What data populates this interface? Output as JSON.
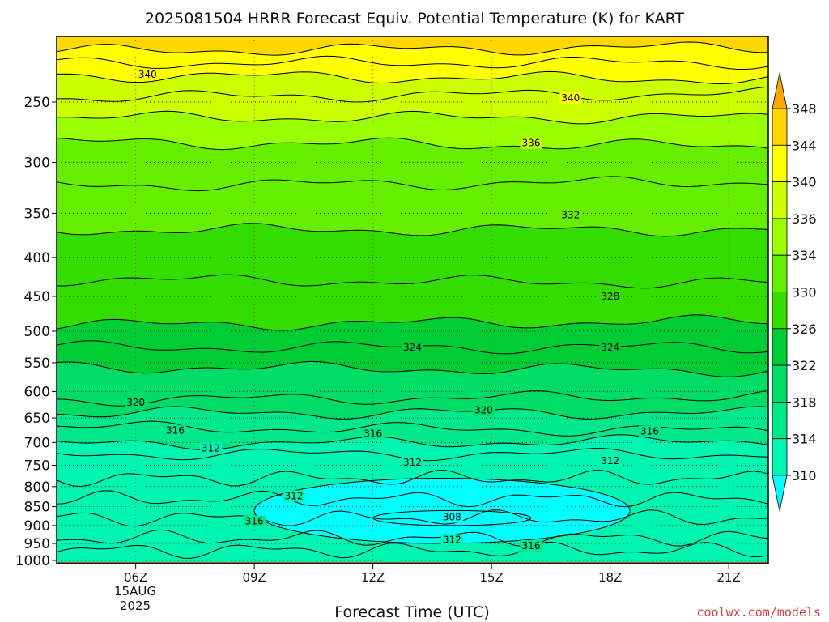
{
  "chart_data": {
    "type": "contour",
    "title": "2025081504 HRRR Forecast Equiv. Potential Temperature (K) for KART",
    "xlabel": "Forecast Time (UTC)",
    "ylabel": "",
    "y_scale": "log",
    "y_inverted": true,
    "ylim": [
      1010,
      205
    ],
    "xlim_hours": [
      4.0,
      22.0
    ],
    "x_ticks": [
      {
        "hour": 6,
        "label": "06Z"
      },
      {
        "hour": 9,
        "label": "09Z"
      },
      {
        "hour": 12,
        "label": "12Z"
      },
      {
        "hour": 15,
        "label": "15Z"
      },
      {
        "hour": 18,
        "label": "18Z"
      },
      {
        "hour": 21,
        "label": "21Z"
      }
    ],
    "date_label_lines": [
      "15AUG",
      "2025"
    ],
    "y_ticks": [
      250,
      300,
      350,
      400,
      450,
      500,
      550,
      600,
      650,
      700,
      750,
      800,
      850,
      900,
      950,
      1000
    ],
    "grid": "dotted",
    "surface_pressure": 1005,
    "surface_color": "#a0522d",
    "colorbar": {
      "levels": [
        310,
        314,
        318,
        322,
        326,
        330,
        334,
        336,
        340,
        344,
        348
      ],
      "colors": [
        "#00ffff",
        "#00f5b0",
        "#00e88a",
        "#00dc66",
        "#00cc33",
        "#33dd00",
        "#66ee00",
        "#99ff00",
        "#ccff00",
        "#ffff00",
        "#ffd700",
        "#ffa500"
      ],
      "extend": "both"
    },
    "contour_interval": 4,
    "contour_levels_aloft": [
      {
        "value": 344,
        "pressure": 213
      },
      {
        "value": 342,
        "pressure": 222
      },
      {
        "value": 340,
        "pressure": 232
      },
      {
        "value": 338,
        "pressure": 245
      },
      {
        "value": 336,
        "pressure": 262
      },
      {
        "value": 334,
        "pressure": 284
      },
      {
        "value": 332,
        "pressure": 320
      },
      {
        "value": 330,
        "pressure": 368
      },
      {
        "value": 328,
        "pressure": 430
      },
      {
        "value": 326,
        "pressure": 488
      },
      {
        "value": 324,
        "pressure": 525
      },
      {
        "value": 322,
        "pressure": 560
      },
      {
        "value": 320,
        "pressure": 612
      },
      {
        "value": 318,
        "pressure": 640
      },
      {
        "value": 316,
        "pressure": 672
      },
      {
        "value": 314,
        "pressure": 700
      },
      {
        "value": 312,
        "pressure": 725
      }
    ],
    "contour_labels": [
      {
        "text": "340",
        "hour": 6.3,
        "pressure": 230
      },
      {
        "text": "340",
        "hour": 17.0,
        "pressure": 247
      },
      {
        "text": "336",
        "hour": 16.0,
        "pressure": 283
      },
      {
        "text": "332",
        "hour": 17.0,
        "pressure": 352
      },
      {
        "text": "328",
        "hour": 18.0,
        "pressure": 450
      },
      {
        "text": "324",
        "hour": 13.0,
        "pressure": 525
      },
      {
        "text": "324",
        "hour": 18.0,
        "pressure": 525
      },
      {
        "text": "320",
        "hour": 6.0,
        "pressure": 620
      },
      {
        "text": "320",
        "hour": 14.8,
        "pressure": 635
      },
      {
        "text": "316",
        "hour": 7.0,
        "pressure": 675
      },
      {
        "text": "316",
        "hour": 12.0,
        "pressure": 682
      },
      {
        "text": "316",
        "hour": 19.0,
        "pressure": 677
      },
      {
        "text": "312",
        "hour": 7.9,
        "pressure": 712
      },
      {
        "text": "312",
        "hour": 13.0,
        "pressure": 744
      },
      {
        "text": "312",
        "hour": 18.0,
        "pressure": 740
      },
      {
        "text": "312",
        "hour": 10.0,
        "pressure": 823
      },
      {
        "text": "316",
        "hour": 9.0,
        "pressure": 888
      },
      {
        "text": "308",
        "hour": 14.0,
        "pressure": 877
      },
      {
        "text": "312",
        "hour": 14.0,
        "pressure": 940
      },
      {
        "text": "316",
        "hour": 16.0,
        "pressure": 957
      }
    ],
    "low_level_regions": [
      {
        "value": 308,
        "hour_range": [
          12.0,
          16.0
        ],
        "pressure_range": [
          860,
          900
        ]
      },
      {
        "value": 310,
        "hour_range": [
          9.0,
          18.5
        ],
        "pressure_range": [
          780,
          950
        ]
      }
    ]
  },
  "credit": "coolwx.com/models"
}
